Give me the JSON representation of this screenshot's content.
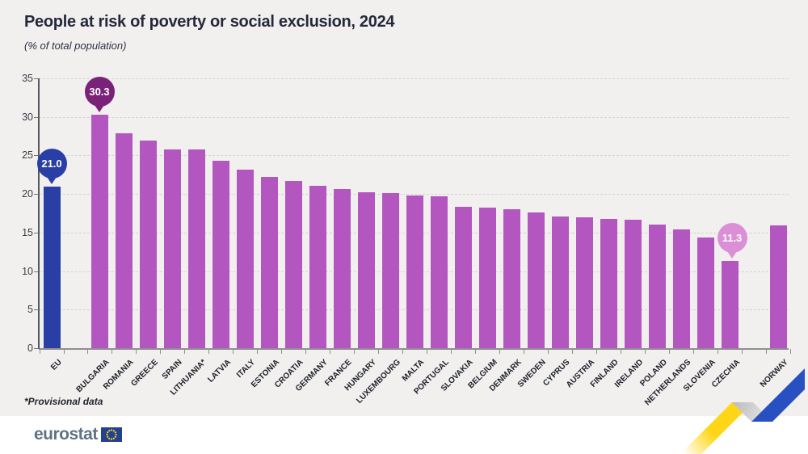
{
  "header": {
    "title": "People at risk of poverty or social exclusion, 2024",
    "subtitle": "(% of total population)"
  },
  "footnote": {
    "text": "*Provisional data"
  },
  "footer": {
    "logo_text": "eurostat"
  },
  "colors": {
    "background": "#f1f0ef",
    "footer_band": "#ffffff",
    "eu_bar": "#2a3fa5",
    "country_bar": "#b456c0",
    "callout_eu": "#2a3fa5",
    "callout_max": "#7a2178",
    "callout_min": "#dc8fd7",
    "gridline": "#d6d4d2",
    "flag_blue": "#24418f",
    "flag_star_yellow": "#ffd617",
    "ribbon_yellow": "#ffd617",
    "ribbon_gray": "#c8c8c8",
    "ribbon_blue": "#2850c0"
  },
  "chart_data": {
    "type": "bar",
    "title": "People at risk of poverty or social exclusion, 2024",
    "subtitle": "(% of total population)",
    "xlabel": "",
    "ylabel": "% of total population",
    "ylim": [
      0,
      35
    ],
    "yticks": [
      0,
      5,
      10,
      15,
      20,
      25,
      30,
      35
    ],
    "grid": "dashed-horizontal",
    "categories": [
      "EU",
      "BULGARIA",
      "ROMANIA",
      "GREECE",
      "SPAIN",
      "LITHUANIA*",
      "LATVIA",
      "ITALY",
      "ESTONIA",
      "CROATIA",
      "GERMANY",
      "FRANCE",
      "HUNGARY",
      "LUXEMBOURG",
      "MALTA",
      "PORTUGAL",
      "SLOVAKIA",
      "BELGIUM",
      "DENMARK",
      "SWEDEN",
      "CYPRUS",
      "AUSTRIA",
      "FINLAND",
      "IRELAND",
      "POLAND",
      "NETHERLANDS",
      "SLOVENIA",
      "CZECHIA",
      "NORWAY"
    ],
    "values": [
      21.0,
      30.3,
      27.9,
      26.9,
      25.8,
      25.8,
      24.3,
      23.1,
      22.2,
      21.7,
      21.1,
      20.6,
      20.2,
      20.1,
      19.8,
      19.7,
      18.3,
      18.2,
      18.0,
      17.6,
      17.1,
      17.0,
      16.8,
      16.7,
      16.0,
      15.4,
      14.4,
      11.3,
      15.9
    ],
    "gap_after": [
      "EU",
      "CZECHIA"
    ],
    "callouts": [
      {
        "category": "EU",
        "label": "21.0",
        "color": "#2a3fa5"
      },
      {
        "category": "BULGARIA",
        "label": "30.3",
        "color": "#7a2178"
      },
      {
        "category": "CZECHIA",
        "label": "11.3",
        "color": "#dc8fd7"
      }
    ],
    "legend": null
  }
}
